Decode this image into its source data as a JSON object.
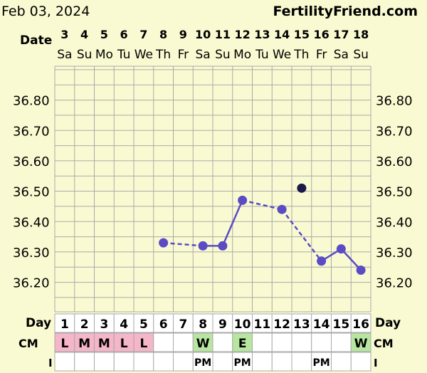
{
  "header": {
    "date": "Feb 03, 2024",
    "brand": "FertilityFriend.com"
  },
  "labels": {
    "date_row": "Date",
    "day_row": "Day",
    "cm_row": "CM",
    "i_row": "I"
  },
  "colors": {
    "background": "#fafad2",
    "grid": "#a9a9a9",
    "line": "#5b4bc4",
    "outlier": "#1c1a4a",
    "menstruation": "#f4b6c8",
    "cm_observed": "#b6e6a0"
  },
  "chart_data": {
    "type": "line",
    "title": "",
    "xlabel": "",
    "ylabel": "",
    "ylim": [
      36.1,
      36.9
    ],
    "yticks": [
      "36.20",
      "36.30",
      "36.40",
      "36.50",
      "36.60",
      "36.70",
      "36.80"
    ],
    "dates": [
      "3",
      "4",
      "5",
      "6",
      "7",
      "8",
      "9",
      "10",
      "11",
      "12",
      "13",
      "14",
      "15",
      "16",
      "17",
      "18"
    ],
    "weekdays": [
      "Sa",
      "Su",
      "Mo",
      "Tu",
      "We",
      "Th",
      "Fr",
      "Sa",
      "Su",
      "Mo",
      "Tu",
      "We",
      "Th",
      "Fr",
      "Sa",
      "Su"
    ],
    "days": [
      "1",
      "2",
      "3",
      "4",
      "5",
      "6",
      "7",
      "8",
      "9",
      "10",
      "11",
      "12",
      "13",
      "14",
      "15",
      "16"
    ],
    "temperatures": [
      null,
      null,
      null,
      null,
      null,
      36.33,
      null,
      36.32,
      36.32,
      36.47,
      null,
      36.44,
      null,
      36.27,
      36.31,
      36.24
    ],
    "discarded": [
      {
        "day": 13,
        "value": 36.51
      }
    ],
    "cervical_mucus": [
      "L",
      "M",
      "M",
      "L",
      "L",
      "",
      "",
      "W",
      "",
      "E",
      "",
      "",
      "",
      "",
      "",
      "W"
    ],
    "intercourse": [
      "",
      "",
      "",
      "",
      "",
      "",
      "",
      "PM",
      "",
      "PM",
      "",
      "",
      "",
      "PM",
      "",
      ""
    ]
  }
}
